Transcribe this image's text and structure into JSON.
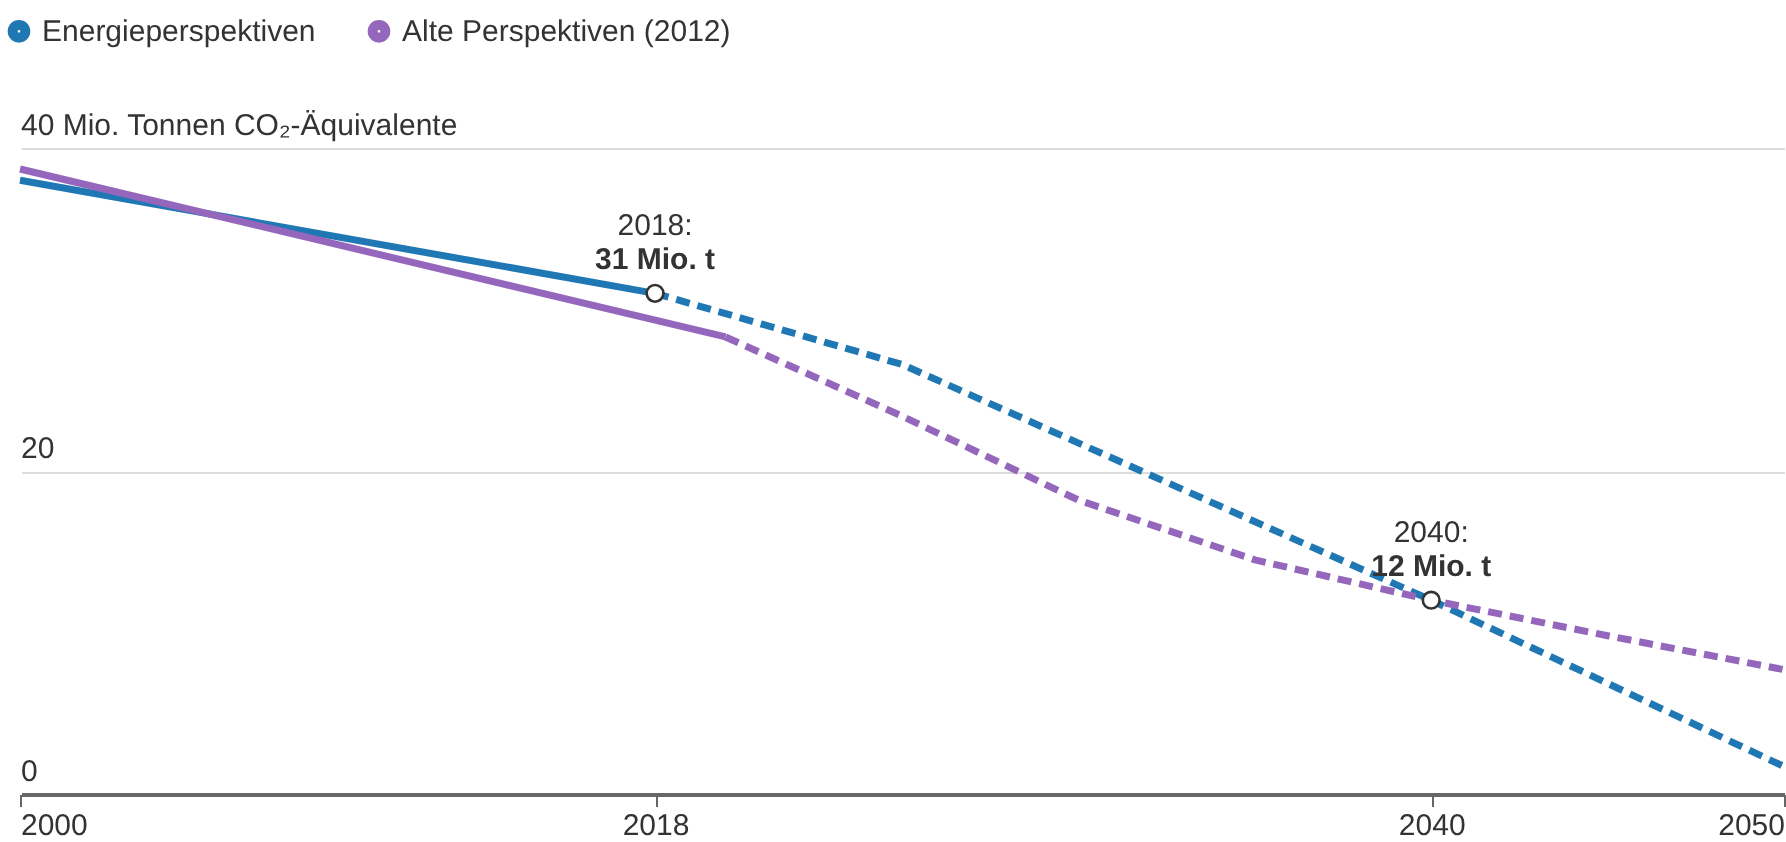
{
  "chart_data": {
    "type": "line",
    "xlim": [
      2000,
      2050
    ],
    "xticks": [
      2000,
      2018,
      2040,
      2050
    ],
    "ylim": [
      0,
      40
    ],
    "yticks": [
      0,
      20,
      {
        "value": 40,
        "label": "40 Mio. Tonnen CO₂-Äquivalente"
      }
    ],
    "grid": "y",
    "legend": "top left",
    "series": [
      {
        "name": "Energieperspektiven",
        "color": "#1f78b4",
        "line_style": "solid",
        "x": [
          2000,
          2018
        ],
        "values": [
          38,
          31
        ]
      },
      {
        "color": "#1f78b4",
        "line_style": "dashed",
        "x": [
          2018,
          2025,
          2040,
          2050
        ],
        "values": [
          31,
          26.6,
          12,
          1.7
        ]
      },
      {
        "name": "Alte Perspektiven (2012)",
        "color": "#9467bd",
        "line_style": "solid",
        "x": [
          2000,
          2020
        ],
        "values": [
          38.7,
          28.3
        ]
      },
      {
        "color": "#9467bd",
        "line_style": "dashed",
        "x": [
          2020,
          2025,
          2030,
          2035,
          2040,
          2045,
          2050
        ],
        "values": [
          28.3,
          23.4,
          18.2,
          14.5,
          12,
          9.8,
          7.7
        ]
      }
    ],
    "annotations": [
      {
        "text": "2018:\n31 Mio. t",
        "x": 2018,
        "y": 31
      },
      {
        "text": "2040:\n12 Mio. t",
        "x": 2040,
        "y": 12
      }
    ]
  }
}
